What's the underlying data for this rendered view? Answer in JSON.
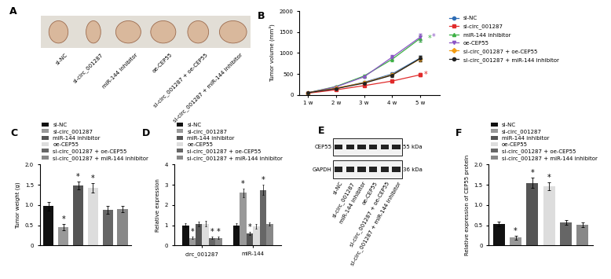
{
  "photo_panel": {
    "title": "A",
    "lanes": [
      "si-NC",
      "si-circ_001287",
      "miR-144 inhibitor",
      "oe-CEP55",
      "si-circ_001287 + oe-CEP55",
      "si-circ_001287 + miR-144 inhibitor"
    ]
  },
  "blot_panel": {
    "title": "E",
    "rows": [
      {
        "label": "CEP55",
        "size": "55 kDa"
      },
      {
        "label": "GAPDH",
        "size": "36 kDa"
      }
    ],
    "lanes": [
      "si-NC",
      "si-circ_001287",
      "miR-144 inhibitor",
      "oe-CEP55",
      "si-circ_001287 + oe-CEP55",
      "si-circ_001287 + miR-144 inhibitor"
    ]
  },
  "chart_data": [
    {
      "type": "line",
      "title": "B",
      "y_label": "Tumor volume (mm³)",
      "categories": [
        "1 w",
        "2 w",
        "3 w",
        "4 w",
        "5 w"
      ],
      "ylim": [
        0,
        2000
      ],
      "yticks": [
        0,
        500,
        1000,
        1500,
        2000
      ],
      "legend": "right",
      "series": [
        {
          "name": "si-NC",
          "color": "#2f6db5",
          "marker": "circle",
          "line_style": "solid",
          "values": [
            50,
            150,
            300,
            500,
            880
          ],
          "errors": [
            10,
            20,
            30,
            40,
            60
          ]
        },
        {
          "name": "si-circ_001287",
          "color": "#e02b2b",
          "marker": "square",
          "line_style": "solid",
          "values": [
            40,
            120,
            220,
            330,
            480
          ],
          "errors": [
            10,
            15,
            20,
            30,
            40
          ],
          "annotation": "*"
        },
        {
          "name": "miR-144 inhibitor",
          "color": "#3cb043",
          "marker": "triangle",
          "line_style": "solid",
          "values": [
            50,
            200,
            450,
            850,
            1350
          ],
          "errors": [
            10,
            20,
            30,
            50,
            70
          ],
          "annotation": "*"
        },
        {
          "name": "oe-CEP55",
          "color": "#8b55c6",
          "marker": "triangle_down",
          "line_style": "solid",
          "values": [
            50,
            190,
            430,
            900,
            1380
          ],
          "errors": [
            10,
            20,
            30,
            60,
            80
          ],
          "annotation": "*"
        },
        {
          "name": "si-circ_001287 + oe-CEP55",
          "color": "#f39c12",
          "marker": "diamond",
          "line_style": "solid",
          "values": [
            50,
            160,
            290,
            480,
            860
          ],
          "errors": [
            10,
            20,
            30,
            40,
            60
          ]
        },
        {
          "name": "si-circ_001287 + miR-144 inhibitor",
          "color": "#222222",
          "marker": "circle",
          "line_style": "solid",
          "values": [
            50,
            150,
            280,
            470,
            870
          ],
          "errors": [
            10,
            20,
            30,
            40,
            60
          ]
        }
      ]
    },
    {
      "type": "bar",
      "title": "C",
      "y_label": "Tumor weight (g)",
      "tick_labels": "y",
      "legend": "top",
      "categories": [
        "si-NC",
        "si-circ_001287",
        "miR-144 inhibitor",
        "oe-CEP55",
        "si-circ_001287 + oe-CEP55",
        "si-circ_001287 + miR-144 inhibitor"
      ],
      "colors": [
        "#111111",
        "#999999",
        "#555555",
        "#dddddd",
        "#666666",
        "#888888"
      ],
      "values": [
        0.97,
        0.45,
        1.48,
        1.43,
        0.88,
        0.9
      ],
      "errors": [
        0.1,
        0.08,
        0.1,
        0.12,
        0.1,
        0.08
      ],
      "significance": [
        null,
        "*",
        "*",
        "*",
        null,
        null
      ],
      "ylim": [
        0,
        2
      ],
      "yticks": [
        0,
        0.5,
        {
          "value": 1,
          "label": "1.0"
        },
        1.5,
        {
          "value": 2,
          "label": "2.0"
        }
      ]
    },
    {
      "type": "grouped_bar",
      "title": "D",
      "y_label": "Relative expression",
      "legend": "top",
      "categories": [
        "circ_001287",
        "miR-144"
      ],
      "ylim": [
        0,
        4
      ],
      "yticks": [
        0,
        1,
        2,
        3,
        4
      ],
      "series": [
        {
          "name": "si-NC",
          "color": "#111111",
          "values": [
            1.0,
            1.0
          ],
          "errors": [
            0.1,
            0.12
          ],
          "significance": [
            null,
            null
          ]
        },
        {
          "name": "si-circ_001287",
          "color": "#999999",
          "values": [
            0.38,
            2.6
          ],
          "errors": [
            0.06,
            0.2
          ],
          "significance": [
            "*",
            "*"
          ]
        },
        {
          "name": "miR-144 inhibitor",
          "color": "#555555",
          "values": [
            1.08,
            0.6
          ],
          "errors": [
            0.12,
            0.08
          ],
          "significance": [
            null,
            "*"
          ]
        },
        {
          "name": "oe-CEP55",
          "color": "#dddddd",
          "values": [
            1.08,
            0.95
          ],
          "errors": [
            0.15,
            0.12
          ],
          "significance": [
            null,
            null
          ]
        },
        {
          "name": "si-circ_001287 + oe-CEP55",
          "color": "#666666",
          "values": [
            0.38,
            2.75
          ],
          "errors": [
            0.06,
            0.25
          ],
          "significance": [
            "*",
            "*"
          ]
        },
        {
          "name": "si-circ_001287 + miR-144 inhibitor",
          "color": "#888888",
          "values": [
            0.38,
            1.05
          ],
          "errors": [
            0.06,
            0.08
          ],
          "significance": [
            "*",
            null
          ]
        }
      ]
    },
    {
      "type": "bar",
      "title": "F",
      "y_label": "Relative expression of CEP55 protein",
      "tick_labels": "y",
      "legend": "top",
      "categories": [
        "si-NC",
        "si-circ_001287",
        "miR-144 inhibitor",
        "oe-CEP55",
        "si-circ_001287 + oe-CEP55",
        "si-circ_001287 + miR-144 inhibitor"
      ],
      "colors": [
        "#111111",
        "#999999",
        "#555555",
        "#dddddd",
        "#666666",
        "#888888"
      ],
      "values": [
        0.53,
        0.2,
        1.55,
        1.47,
        0.57,
        0.52
      ],
      "errors": [
        0.06,
        0.05,
        0.12,
        0.1,
        0.06,
        0.06
      ],
      "significance": [
        null,
        "*",
        "*",
        "*",
        null,
        null
      ],
      "ylim": [
        0,
        2
      ],
      "yticks": [
        0,
        0.5,
        {
          "value": 1,
          "label": "1.0"
        },
        1.5,
        {
          "value": 2,
          "label": "2.0"
        }
      ]
    }
  ]
}
